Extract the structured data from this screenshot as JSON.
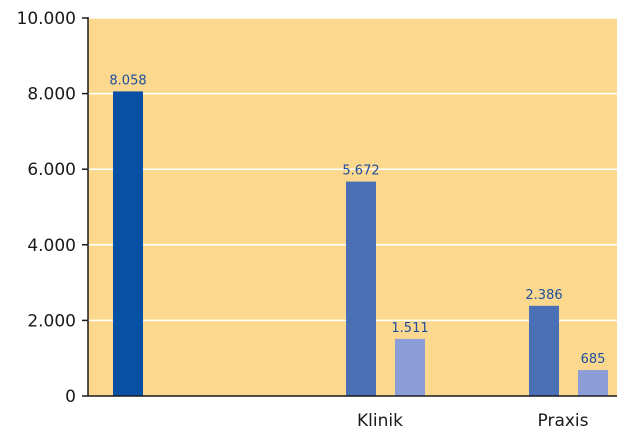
{
  "chart_data": {
    "type": "bar",
    "ylim": [
      0,
      10000
    ],
    "y_ticks": [
      {
        "value": 0,
        "label": "0"
      },
      {
        "value": 2000,
        "label": "2.000"
      },
      {
        "value": 4000,
        "label": "4.000"
      },
      {
        "value": 6000,
        "label": "6.000"
      },
      {
        "value": 8000,
        "label": "8.000"
      },
      {
        "value": 10000,
        "label": "10.000"
      }
    ],
    "grid": true,
    "categories": [
      "",
      "Klinik",
      "Praxis"
    ],
    "bars": [
      {
        "category": "",
        "value": 8058,
        "label": "8.058",
        "color": "#0750a4"
      },
      {
        "category": "Klinik",
        "value": 5672,
        "label": "5.672",
        "color": "#4a6fb5"
      },
      {
        "category": "Klinik",
        "value": 1511,
        "label": "1.511",
        "color": "#8a9dd6"
      },
      {
        "category": "Praxis",
        "value": 2386,
        "label": "2.386",
        "color": "#4a6fb5"
      },
      {
        "category": "Praxis",
        "value": 685,
        "label": "685",
        "color": "#8a9dd6"
      }
    ],
    "colors": {
      "plot_background": "#fcd88e",
      "gridline": "#ffffff",
      "data_label": "#1f4e9c",
      "axis": "#1a1a1a"
    }
  }
}
